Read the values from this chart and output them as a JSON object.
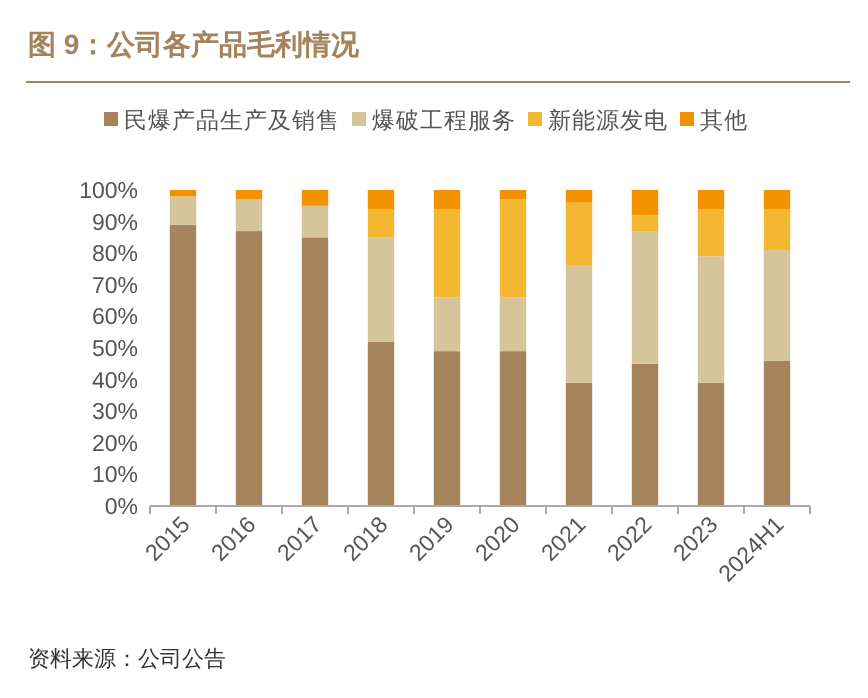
{
  "chart_data": {
    "type": "bar",
    "stacked": true,
    "title": "图 9：公司各产品毛利情况",
    "categories": [
      "2015",
      "2016",
      "2017",
      "2018",
      "2019",
      "2020",
      "2021",
      "2022",
      "2023",
      "2024H1"
    ],
    "series": [
      {
        "name": "民爆产品生产及销售",
        "color": "#a5835b",
        "values": [
          89,
          87,
          85,
          52,
          49,
          49,
          39,
          45,
          39,
          46
        ]
      },
      {
        "name": "爆破工程服务",
        "color": "#d6c49a",
        "values": [
          9,
          10,
          10,
          33,
          17,
          17,
          37,
          42,
          40,
          35
        ]
      },
      {
        "name": "新能源发电",
        "color": "#f4b731",
        "values": [
          0,
          0,
          0,
          9,
          28,
          31,
          20,
          5,
          15,
          13
        ]
      },
      {
        "name": "其他",
        "color": "#f39200",
        "values": [
          2,
          3,
          5,
          6,
          6,
          3,
          4,
          8,
          6,
          6
        ]
      }
    ],
    "ylim": [
      0,
      100
    ],
    "yticks": [
      {
        "value": 0,
        "label": "0%"
      },
      {
        "value": 10,
        "label": "10%"
      },
      {
        "value": 20,
        "label": "20%"
      },
      {
        "value": 30,
        "label": "30%"
      },
      {
        "value": 40,
        "label": "40%"
      },
      {
        "value": 50,
        "label": "50%"
      },
      {
        "value": 60,
        "label": "60%"
      },
      {
        "value": 70,
        "label": "70%"
      },
      {
        "value": 80,
        "label": "80%"
      },
      {
        "value": 90,
        "label": "90%"
      },
      {
        "value": 100,
        "label": "100%"
      }
    ],
    "legend": "top",
    "grid": false,
    "annotations": [
      "资料来源：公司公告"
    ]
  }
}
